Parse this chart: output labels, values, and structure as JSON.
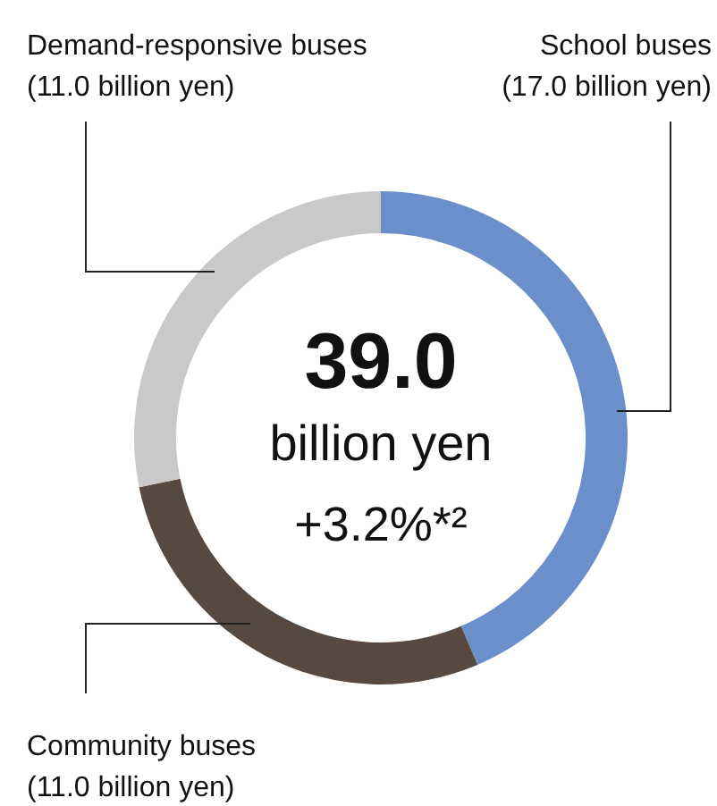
{
  "chart_data": {
    "type": "donut",
    "categories": [
      "School buses",
      "Community buses",
      "Demand-responsive buses"
    ],
    "values": [
      17.0,
      11.0,
      11.0
    ],
    "colors": [
      "#6b8fca",
      "#574840",
      "#c9c9c9"
    ],
    "value_labels": [
      "(17.0 billion yen)",
      "(11.0 billion yen)",
      "(11.0 billion yen)"
    ],
    "annotations": [
      "39.0",
      "billion yen",
      "+3.2%*²"
    ]
  }
}
